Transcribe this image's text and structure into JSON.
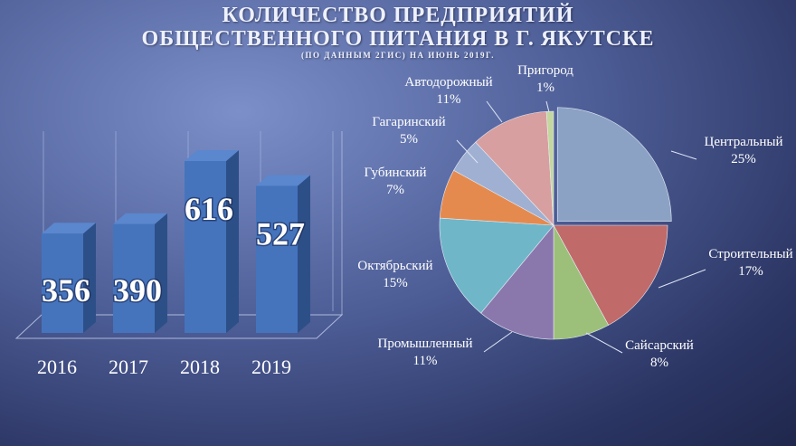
{
  "title": {
    "line1": "КОЛИЧЕСТВО ПРЕДПРИЯТИЙ",
    "line2": "ОБЩЕСТВЕННОГО ПИТАНИЯ В Г. ЯКУТСКЕ",
    "line3": "(ПО ДАННЫМ 2ГИС) НА ИЮНЬ 2019Г."
  },
  "chart_data": [
    {
      "type": "bar",
      "categories": [
        "2016",
        "2017",
        "2018",
        "2019"
      ],
      "values": [
        356,
        390,
        616,
        527
      ],
      "data_labels": [
        "356",
        "390",
        "616",
        "527"
      ],
      "colors": {
        "front": "#4574bd",
        "side": "#2d4f87",
        "top": "#5a87cd"
      }
    },
    {
      "type": "pie",
      "slices": [
        {
          "label": "Центральный",
          "percent_label": "25%",
          "value": 25,
          "color": "#8ba2c5"
        },
        {
          "label": "Строительный",
          "percent_label": "17%",
          "value": 17,
          "color": "#c06a6a"
        },
        {
          "label": "Сайсарский",
          "percent_label": "8%",
          "value": 8,
          "color": "#9cc07a"
        },
        {
          "label": "Промышленный",
          "percent_label": "11%",
          "value": 11,
          "color": "#8a78ad"
        },
        {
          "label": "Октябрьский",
          "percent_label": "15%",
          "value": 15,
          "color": "#6fb6c9"
        },
        {
          "label": "Губинский",
          "percent_label": "7%",
          "value": 7,
          "color": "#e58a4e"
        },
        {
          "label": "Гагаринский",
          "percent_label": "5%",
          "value": 5,
          "color": "#9fb0d2"
        },
        {
          "label": "Автодорожный",
          "percent_label": "11%",
          "value": 11,
          "color": "#d79f9f"
        },
        {
          "label": "Пригород",
          "percent_label": "1%",
          "value": 1,
          "color": "#c3d79f"
        }
      ]
    }
  ]
}
